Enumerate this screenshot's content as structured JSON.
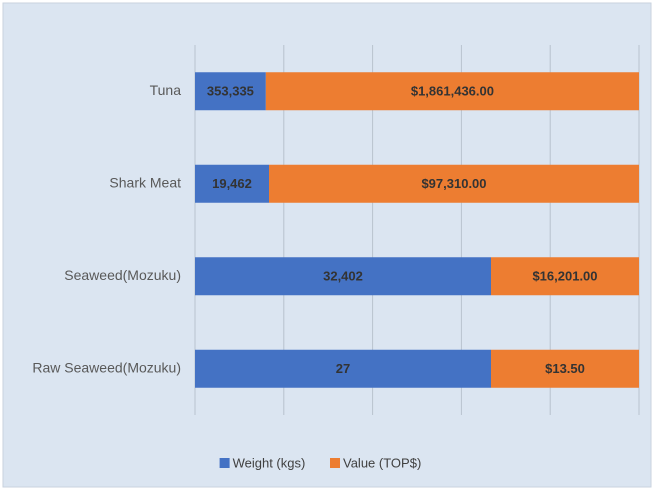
{
  "chart_data": {
    "type": "bar",
    "orientation": "horizontal",
    "stack": "percent",
    "categories": [
      "Tuna",
      "Shark Meat",
      "Seaweed(Mozuku)",
      "Raw Seaweed(Mozuku)"
    ],
    "series": [
      {
        "name": "Weight (kgs)",
        "color": "#4472c4",
        "values": [
          353335,
          19462,
          32402,
          27
        ],
        "value_labels": [
          "353,335",
          "19,462",
          "32,402",
          "27"
        ]
      },
      {
        "name": "Value (TOP$)",
        "color": "#ed7d31",
        "values": [
          1861436,
          97310,
          16201,
          13.5
        ],
        "value_labels": [
          "$1,861,436.00",
          "$97,310.00",
          "$16,201.00",
          "$13.50"
        ]
      }
    ],
    "xlim": [
      0,
      100
    ],
    "xticks": [
      0,
      20,
      40,
      60,
      80,
      100
    ],
    "grid": true,
    "legend": "bottom"
  }
}
